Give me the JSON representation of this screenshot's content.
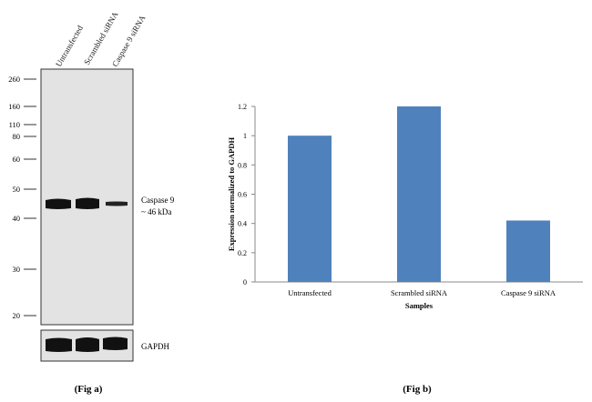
{
  "panel_a": {
    "lane_labels": [
      "Untransfected",
      "Scrambled siRNA",
      "Caspase 9 siRNA"
    ],
    "ladder_kda": [
      260,
      160,
      110,
      80,
      60,
      50,
      40,
      30,
      20
    ],
    "target_label_line1": "Caspase 9",
    "target_label_line2": "~ 46 kDa",
    "loading_control_label": "GAPDH",
    "caption": "(Fig a)"
  },
  "chart_data": {
    "type": "bar",
    "categories": [
      "Untransfected",
      "Scrambled siRNA",
      "Caspase 9 siRNA"
    ],
    "values": [
      1.0,
      1.2,
      0.42
    ],
    "ylim": [
      0,
      1.2
    ],
    "yticks": [
      0,
      0.2,
      0.4,
      0.6,
      0.8,
      1,
      1.2
    ],
    "ylabel": "Expression normalized to GAPDH",
    "xlabel": "Samples",
    "title": "",
    "grid": false,
    "legend": "none",
    "bar_color": "#4f81bd",
    "caption": "(Fig b)"
  }
}
